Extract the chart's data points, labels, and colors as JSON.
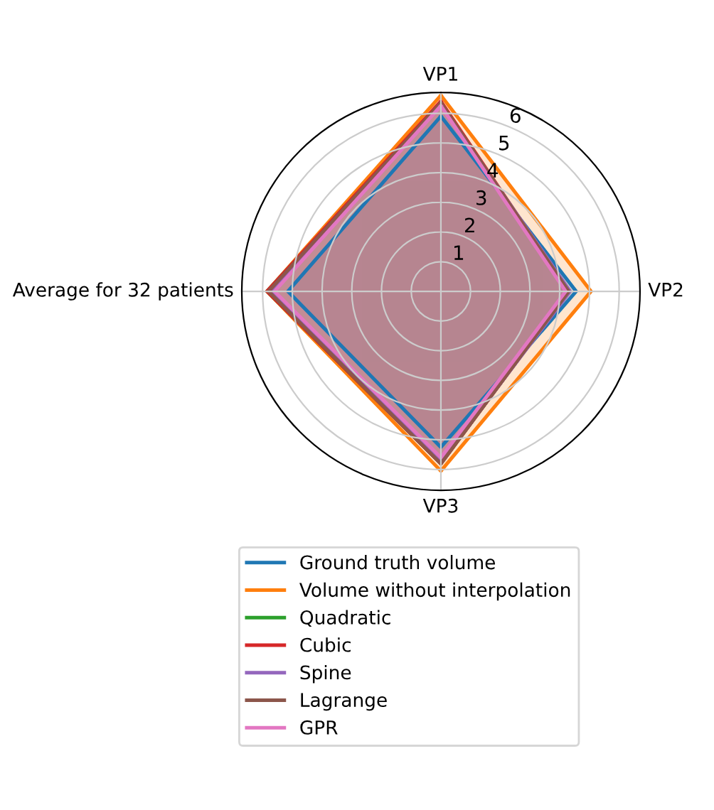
{
  "chart_data": {
    "type": "radar",
    "categories": [
      "VP1",
      "VP2",
      "VP3",
      "Average for 32 patients"
    ],
    "ylim": [
      0,
      6.7
    ],
    "yticks": [
      1,
      2,
      3,
      4,
      5,
      6
    ],
    "grid": true,
    "legend": "bottom",
    "series": [
      {
        "name": "Ground truth volume",
        "color": "#1f77b4",
        "values": [
          5.9,
          4.55,
          5.25,
          5.15
        ]
      },
      {
        "name": "Volume without interpolation",
        "color": "#ff7f0e",
        "values": [
          6.6,
          5.05,
          6.05,
          5.85
        ]
      },
      {
        "name": "Quadratic",
        "color": "#2ca02c",
        "values": [
          6.35,
          4.3,
          5.8,
          5.85
        ]
      },
      {
        "name": "Cubic",
        "color": "#d62728",
        "values": [
          6.4,
          4.3,
          5.8,
          5.85
        ]
      },
      {
        "name": "Spine",
        "color": "#9467bd",
        "values": [
          6.3,
          4.35,
          5.75,
          5.7
        ]
      },
      {
        "name": "Lagrange",
        "color": "#8c564b",
        "values": [
          6.35,
          4.3,
          5.8,
          5.8
        ]
      },
      {
        "name": "GPR",
        "color": "#e377c2",
        "values": [
          6.25,
          4.2,
          5.6,
          5.6
        ]
      }
    ]
  }
}
